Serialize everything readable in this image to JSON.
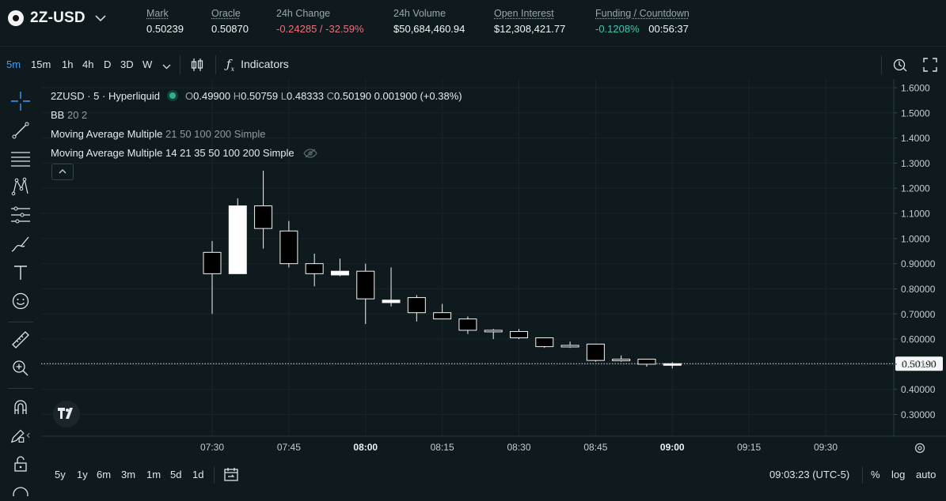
{
  "market": {
    "name": "2Z-USD"
  },
  "stats": [
    {
      "label": "Mark",
      "value": "0.50239",
      "underline": true
    },
    {
      "label": "Oracle",
      "value": "0.50870",
      "underline": true
    },
    {
      "label": "24h Change",
      "value": "-0.24285 / -32.59%",
      "underline": false
    },
    {
      "label": "24h Volume",
      "value": "$50,684,460.94",
      "underline": false
    },
    {
      "label": "Open Interest",
      "value": "$12,308,421.77",
      "underline": true
    },
    {
      "label": "Funding / Countdown",
      "funding": "-0.1208%",
      "countdown": "00:56:37",
      "underline": true
    }
  ],
  "toolbar": {
    "timeframes": [
      "5m",
      "15m",
      "1h",
      "4h",
      "D",
      "3D",
      "W"
    ],
    "active_timeframe": "5m",
    "indicators_label": "Indicators"
  },
  "legend": {
    "symbol": "2ZUSD · 5 · Hyperliquid",
    "o": "0.49900",
    "h": "0.50759",
    "l": "0.48333",
    "c": "0.50190",
    "change": "0.001900 (+0.38%)",
    "bb_name": "BB",
    "bb_params": "20 2",
    "ma1_name": "Moving Average Multiple",
    "ma1_params": "21 50 100 200 Simple",
    "ma2_name": "Moving Average Multiple",
    "ma2_params": "14 21 35 50 100 200 Simple"
  },
  "chart_data": {
    "type": "candlestick",
    "x_ticks": [
      "07:30",
      "07:45",
      "08:00",
      "08:15",
      "08:30",
      "08:45",
      "09:00",
      "09:15",
      "09:30"
    ],
    "bold_x_ticks": [
      "08:00",
      "09:00"
    ],
    "y_ticks": [
      "1.6000",
      "1.5000",
      "1.4000",
      "1.3000",
      "1.2000",
      "1.1000",
      "1.0000",
      "0.90000",
      "0.80000",
      "0.70000",
      "0.60000",
      "0.50000",
      "0.40000",
      "0.30000"
    ],
    "ylim": [
      0.23,
      1.62
    ],
    "time_start": "07:00",
    "time_end": "09:45",
    "interval_minutes": 5,
    "last_price_label": "0.50190",
    "last_price": 0.5019,
    "candles": [
      {
        "t": "07:30",
        "o": 0.945,
        "h": 0.99,
        "l": 0.7,
        "c": 0.86
      },
      {
        "t": "07:35",
        "o": 0.86,
        "h": 1.16,
        "l": 0.86,
        "c": 1.13
      },
      {
        "t": "07:40",
        "o": 1.13,
        "h": 1.27,
        "l": 0.96,
        "c": 1.04
      },
      {
        "t": "07:45",
        "o": 1.03,
        "h": 1.07,
        "l": 0.885,
        "c": 0.9
      },
      {
        "t": "07:50",
        "o": 0.9,
        "h": 0.94,
        "l": 0.81,
        "c": 0.86
      },
      {
        "t": "07:55",
        "o": 0.855,
        "h": 0.92,
        "l": 0.85,
        "c": 0.87
      },
      {
        "t": "08:00",
        "o": 0.87,
        "h": 0.9,
        "l": 0.66,
        "c": 0.76
      },
      {
        "t": "08:05",
        "o": 0.745,
        "h": 0.885,
        "l": 0.73,
        "c": 0.755
      },
      {
        "t": "08:10",
        "o": 0.765,
        "h": 0.775,
        "l": 0.67,
        "c": 0.705
      },
      {
        "t": "08:15",
        "o": 0.705,
        "h": 0.74,
        "l": 0.68,
        "c": 0.68
      },
      {
        "t": "08:20",
        "o": 0.68,
        "h": 0.69,
        "l": 0.62,
        "c": 0.635
      },
      {
        "t": "08:25",
        "o": 0.635,
        "h": 0.64,
        "l": 0.6,
        "c": 0.63
      },
      {
        "t": "08:30",
        "o": 0.63,
        "h": 0.64,
        "l": 0.6,
        "c": 0.605
      },
      {
        "t": "08:35",
        "o": 0.605,
        "h": 0.605,
        "l": 0.565,
        "c": 0.57
      },
      {
        "t": "08:40",
        "o": 0.575,
        "h": 0.59,
        "l": 0.565,
        "c": 0.57
      },
      {
        "t": "08:45",
        "o": 0.58,
        "h": 0.58,
        "l": 0.51,
        "c": 0.515
      },
      {
        "t": "08:50",
        "o": 0.52,
        "h": 0.535,
        "l": 0.51,
        "c": 0.515
      },
      {
        "t": "08:55",
        "o": 0.52,
        "h": 0.52,
        "l": 0.49,
        "c": 0.5
      },
      {
        "t": "09:00",
        "o": 0.499,
        "h": 0.5076,
        "l": 0.4833,
        "c": 0.5019
      }
    ]
  },
  "bottom": {
    "ranges": [
      "5y",
      "1y",
      "6m",
      "3m",
      "1m",
      "5d",
      "1d"
    ],
    "clock": "09:03:23 (UTC-5)",
    "percent_label": "%",
    "log_label": "log",
    "auto_label": "auto"
  }
}
